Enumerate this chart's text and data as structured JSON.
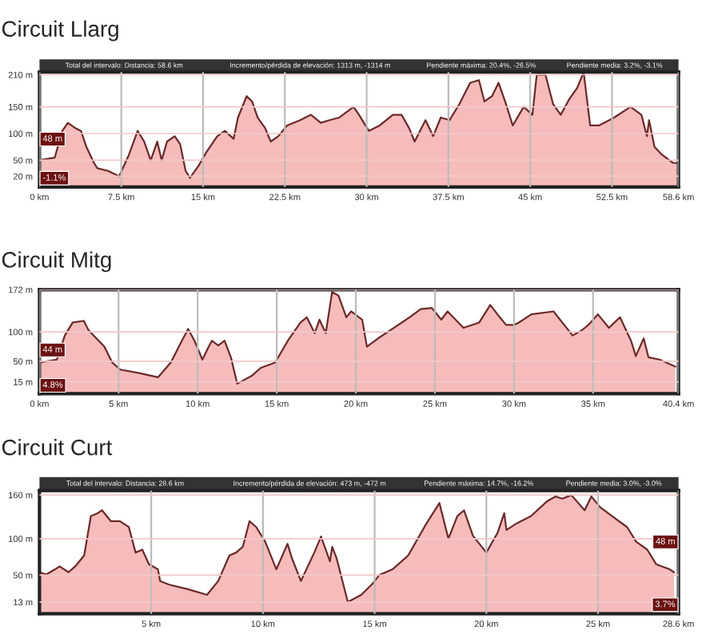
{
  "chart_data": [
    {
      "type": "area",
      "title": "Circuit Llarg",
      "x": [
        0,
        1.4,
        2.1,
        2.6,
        3.3,
        3.8,
        4.3,
        5.0,
        5.3,
        6.3,
        7.3,
        8.2,
        9.0,
        9.6,
        10.2,
        10.8,
        11.2,
        11.7,
        12.4,
        12.9,
        13.4,
        13.8,
        14.6,
        15.3,
        16.3,
        17.0,
        17.8,
        18.2,
        19.0,
        19.5,
        20.0,
        20.7,
        21.2,
        21.9,
        22.7,
        23.9,
        24.9,
        25.8,
        26.6,
        27.5,
        28.8,
        29.3,
        30.2,
        31.2,
        32.4,
        33.2,
        33.9,
        34.4,
        35.4,
        36.1,
        36.8,
        37.6,
        38.5,
        39.5,
        40.3,
        40.8,
        41.5,
        42.1,
        42.7,
        43.4,
        44.4,
        45.2,
        45.6,
        46.4,
        47.1,
        47.8,
        48.6,
        49.3,
        49.9,
        50.5,
        51.3,
        52.7,
        54.2,
        55.2,
        55.7,
        55.9,
        56.4,
        57.1,
        58.1,
        58.6
      ],
      "series": [
        {
          "color": "#6b2a2a",
          "values": [
            50,
            55,
            105,
            120,
            110,
            105,
            75,
            45,
            35,
            30,
            20,
            60,
            105,
            85,
            50,
            85,
            50,
            85,
            95,
            80,
            30,
            17,
            40,
            65,
            95,
            105,
            90,
            130,
            170,
            160,
            130,
            110,
            85,
            95,
            115,
            125,
            135,
            120,
            125,
            130,
            150,
            135,
            105,
            115,
            135,
            135,
            110,
            85,
            125,
            95,
            130,
            125,
            155,
            195,
            200,
            160,
            170,
            195,
            160,
            115,
            150,
            135,
            210,
            210,
            155,
            135,
            165,
            185,
            215,
            115,
            115,
            130,
            150,
            135,
            95,
            125,
            75,
            60,
            45,
            45
          ]
        }
      ],
      "xlim": [
        0,
        58.6
      ],
      "xticks": [
        {
          "value": 0,
          "label": "0 km"
        },
        {
          "value": 7.5,
          "label": "7.5 km"
        },
        {
          "value": 15,
          "label": "15 km"
        },
        {
          "value": 22.5,
          "label": "22.5 km"
        },
        {
          "value": 30,
          "label": "30 km"
        },
        {
          "value": 37.5,
          "label": "37.5 km"
        },
        {
          "value": 45,
          "label": "45 km"
        },
        {
          "value": 52.5,
          "label": "52.5 km"
        },
        {
          "value": 58.6,
          "label": "58.6 km"
        }
      ],
      "ylim": [
        0,
        215
      ],
      "yticks": [
        {
          "value": 20,
          "label": "20 m"
        },
        {
          "value": 50,
          "label": "50 m"
        },
        {
          "value": 100,
          "label": "100 m"
        },
        {
          "value": 150,
          "label": "150 m"
        },
        {
          "value": 210,
          "label": "210 m"
        }
      ],
      "grid": true,
      "annotations": [
        "Total del intervalo: Distancia: 58.6 km",
        "Incremento/pérdida de elevación: 1313 m, -1314 m",
        "Pendiente máxima: 20.4%, -26.5%",
        "Pendiente media: 3.2%, -3.1%",
        "48 m",
        "-1.1%"
      ]
    },
    {
      "type": "area",
      "title": "Circuit Mitg",
      "x": [
        0,
        1.1,
        1.6,
        2.1,
        2.8,
        3.1,
        3.6,
        4.1,
        4.6,
        5.1,
        6.3,
        7.5,
        8.3,
        9.0,
        9.4,
        9.8,
        10.3,
        10.7,
        10.9,
        11.3,
        11.7,
        12.1,
        12.5,
        13.4,
        14.0,
        14.9,
        15.7,
        16.5,
        16.9,
        17.4,
        17.7,
        18.1,
        18.5,
        18.9,
        19.4,
        19.7,
        20.4,
        20.7,
        21.4,
        22.4,
        23.4,
        24.1,
        24.8,
        25.4,
        25.8,
        26.8,
        27.8,
        28.5,
        29.1,
        29.5,
        30.0,
        30.3,
        31.1,
        32.5,
        33.7,
        34.3,
        34.7,
        35.3,
        36.0,
        36.7,
        37.4,
        37.7,
        38.2,
        38.5,
        39.2,
        40.2
      ],
      "series": [
        {
          "color": "#6b2a2a",
          "values": [
            48,
            53,
            94,
            116,
            119,
            103,
            89,
            75,
            48,
            36,
            30,
            23,
            48,
            85,
            105,
            85,
            53,
            75,
            85,
            77,
            85,
            57,
            12,
            25,
            39,
            48,
            85,
            116,
            125,
            98,
            121,
            98,
            168,
            162,
            125,
            135,
            121,
            75,
            89,
            107,
            125,
            139,
            141,
            121,
            135,
            107,
            116,
            146,
            125,
            112,
            112,
            116,
            130,
            135,
            94,
            103,
            112,
            130,
            107,
            125,
            85,
            59,
            89,
            57,
            53,
            41
          ]
        }
      ],
      "xlim": [
        0,
        40.4
      ],
      "xticks": [
        {
          "value": 0,
          "label": "0 km"
        },
        {
          "value": 5,
          "label": "5 km"
        },
        {
          "value": 10,
          "label": "10 km"
        },
        {
          "value": 15,
          "label": "15 km"
        },
        {
          "value": 20,
          "label": "20 km"
        },
        {
          "value": 25,
          "label": "25 km"
        },
        {
          "value": 30,
          "label": "30 km"
        },
        {
          "value": 35,
          "label": "35 km"
        },
        {
          "value": 40.4,
          "label": "40.4 km"
        }
      ],
      "ylim": [
        -5,
        172
      ],
      "yticks": [
        {
          "value": 15,
          "label": "15 m"
        },
        {
          "value": 50,
          "label": "50 m"
        },
        {
          "value": 100,
          "label": "100 m"
        },
        {
          "value": 172,
          "label": "172 m"
        }
      ],
      "grid": true,
      "annotations": [
        "44 m",
        "4.8%"
      ]
    },
    {
      "type": "area",
      "title": "Circuit Curt",
      "x": [
        0,
        0.3,
        0.7,
        0.9,
        1.3,
        1.6,
        2.0,
        2.3,
        2.6,
        2.8,
        3.2,
        3.6,
        4.0,
        4.3,
        4.6,
        4.9,
        5.3,
        5.4,
        5.8,
        6.6,
        7.5,
        8.0,
        8.5,
        8.8,
        9.1,
        9.4,
        9.7,
        10.1,
        10.6,
        11.1,
        11.3,
        11.7,
        12.3,
        12.6,
        13.0,
        13.1,
        13.3,
        13.8,
        14.4,
        14.9,
        15.2,
        15.8,
        16.5,
        17.3,
        17.9,
        18.3,
        18.7,
        19.0,
        19.4,
        20.0,
        20.5,
        20.8,
        20.9,
        21.3,
        22.0,
        22.7,
        23.1,
        23.4,
        23.8,
        24.4,
        24.7,
        25.1,
        25.8,
        26.3,
        26.7,
        27.2,
        27.6,
        28.2,
        28.4
      ],
      "series": [
        {
          "color": "#6b2a2a",
          "values": [
            54,
            51,
            58,
            62,
            54,
            62,
            77,
            131,
            135,
            139,
            124,
            124,
            116,
            81,
            85,
            65,
            58,
            42,
            37,
            31,
            23,
            42,
            77,
            81,
            89,
            124,
            116,
            96,
            58,
            93,
            73,
            42,
            81,
            103,
            69,
            89,
            73,
            13,
            23,
            38,
            50,
            58,
            77,
            120,
            149,
            100,
            131,
            139,
            104,
            81,
            108,
            135,
            112,
            120,
            131,
            151,
            158,
            155,
            160,
            139,
            158,
            143,
            127,
            116,
            96,
            85,
            65,
            58,
            54
          ]
        }
      ],
      "xlim": [
        0,
        28.6
      ],
      "xticks": [
        {
          "value": 5,
          "label": "5 km"
        },
        {
          "value": 10,
          "label": "10 km"
        },
        {
          "value": 15,
          "label": "15 km"
        },
        {
          "value": 20,
          "label": "20 km"
        },
        {
          "value": 25,
          "label": "25 km"
        },
        {
          "value": 28.6,
          "label": "28.6 km"
        }
      ],
      "ylim": [
        -3,
        166
      ],
      "yticks": [
        {
          "value": 13,
          "label": "13 m"
        },
        {
          "value": 50,
          "label": "50 m"
        },
        {
          "value": 100,
          "label": "100 m"
        },
        {
          "value": 160,
          "label": "160 m"
        }
      ],
      "grid": true,
      "annotations": [
        "Total del intervalo: Distancia: 28.6 km",
        "Incremento/pérdida de elevación: 473 m, -472 m",
        "Pendiente máxima: 14.7%, -16.2%",
        "Pendiente media: 3.0%, -3.0%",
        "48 m",
        "3.7%"
      ]
    }
  ]
}
